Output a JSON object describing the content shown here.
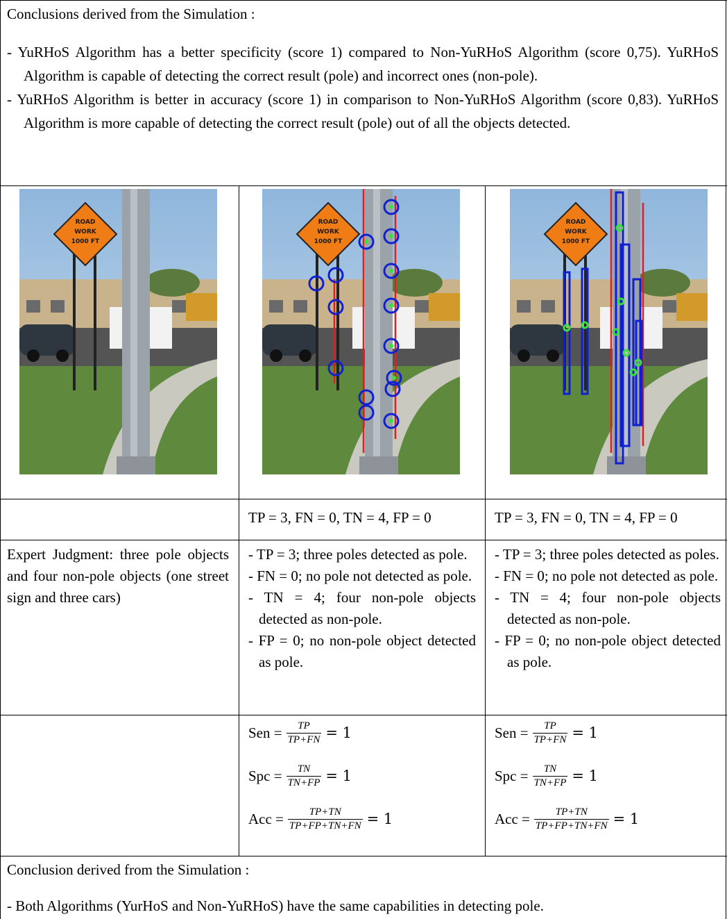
{
  "intro": {
    "heading": "Conclusions derived from the Simulation :",
    "bullets": [
      "- YuRHoS Algorithm has a better specificity (score 1) compared to Non-YuRHoS Algorithm (score 0,75). YuRHoS Algorithm is capable of detecting the correct result (pole) and incorrect ones (non-pole).",
      "- YuRHoS Algorithm is better in accuracy (score 1) in comparison to Non-YuRHoS Algorithm (score 0,83). YuRHoS Algorithm is more capable of detecting the correct result (pole) out of all the objects detected."
    ]
  },
  "sign_text": [
    "ROAD",
    "WORK",
    "1000 FT"
  ],
  "counts": [
    "TP = 3, FN = 0, TN = 4, FP = 0",
    "TP = 3, FN = 0, TN = 4, FP = 0"
  ],
  "expert_judgment": "Expert Judgment: three pole objects and four non-pole objects (one street sign and three cars)",
  "analysis": [
    [
      "- TP = 3; three poles detected as pole.",
      "- FN = 0; no pole not detected as pole.",
      "- TN = 4; four non-pole objects detected as non-pole.",
      "- FP = 0; no non-pole object detected as pole."
    ],
    [
      "- TP = 3; three poles detected as poles.",
      "- FN = 0; no pole not detected as pole.",
      "- TN = 4; four non-pole objects detected as non-pole.",
      "- FP = 0; no non-pole object detected as pole."
    ]
  ],
  "formulas": [
    [
      {
        "label": "Sen =",
        "num": "TP",
        "den": "TP+FN",
        "result": "= 1"
      },
      {
        "label": "Spc =",
        "num": "TN",
        "den": "TN+FP",
        "result": "= 1"
      },
      {
        "label": "Acc =",
        "num": "TP+TN",
        "den": "TP+FP+TN+FN",
        "result": "= 1"
      }
    ],
    [
      {
        "label": "Sen =",
        "num": "TP",
        "den": "TP+FN",
        "result": "= 1"
      },
      {
        "label": "Spc =",
        "num": "TN",
        "den": "TN+FP",
        "result": "= 1"
      },
      {
        "label": "Acc =",
        "num": "TP+TN",
        "den": "TP+FP+TN+FN",
        "result": "= 1"
      }
    ]
  ],
  "conclusion": {
    "heading": "Conclusion derived from the Simulation :",
    "bullets": [
      "- Both Algorithms (YurHoS and Non-YuRHoS) have the same capabilities in detecting pole."
    ]
  }
}
